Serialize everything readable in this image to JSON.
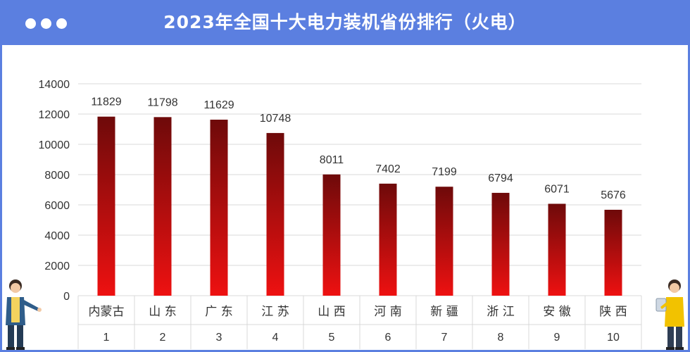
{
  "window_controls": [
    "dot",
    "dot",
    "dot"
  ],
  "header": {
    "title": "2023年全国十大电力装机省份排行（火电）"
  },
  "colors": {
    "frame": "#5b7fe0",
    "bar_top": "#6e0a0a",
    "bar_bottom": "#ee1111",
    "grid": "#d9d9d9",
    "text": "#333333"
  },
  "chart_data": {
    "type": "bar",
    "title": "2023年全国十大电力装机省份排行（火电）",
    "categories": [
      "内蒙古",
      "山 东",
      "广 东",
      "江 苏",
      "山 西",
      "河 南",
      "新 疆",
      "浙 江",
      "安 徽",
      "陕 西"
    ],
    "ranks": [
      "1",
      "2",
      "3",
      "4",
      "5",
      "6",
      "7",
      "8",
      "9",
      "10"
    ],
    "values": [
      11829,
      11798,
      11629,
      10748,
      8011,
      7402,
      7199,
      6794,
      6071,
      5676
    ],
    "ylim": [
      0,
      14000
    ],
    "yticks": [
      0,
      2000,
      4000,
      6000,
      8000,
      10000,
      12000,
      14000
    ],
    "grid": true,
    "data_labels": true,
    "xlabel": "",
    "ylabel": ""
  }
}
